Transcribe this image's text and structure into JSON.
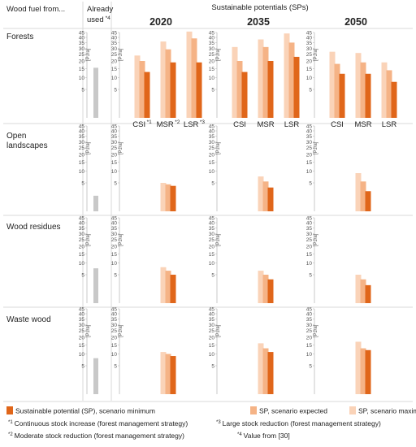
{
  "header": {
    "col_label": "Wood fuel from...",
    "already_used_line1": "Already",
    "already_used_line2": "used",
    "already_used_sup": "*4",
    "sp_title": "Sustainable potentials (SPs)",
    "years": [
      "2020",
      "2035",
      "2050"
    ]
  },
  "rows": [
    {
      "label_lines": [
        "Forests"
      ]
    },
    {
      "label_lines": [
        "Open",
        "landscapes"
      ]
    },
    {
      "label_lines": [
        "Wood residues"
      ]
    },
    {
      "label_lines": [
        "Waste wood"
      ]
    }
  ],
  "y_axis": {
    "unit": "[PJ/a]",
    "ticks": [
      5,
      10,
      15,
      20,
      25,
      30,
      35,
      40,
      45
    ],
    "scale": "sqrt"
  },
  "x_labels": {
    "2020": [
      {
        "text": "CSI",
        "sup": "*1"
      },
      {
        "text": "MSR",
        "sup": "*2"
      },
      {
        "text": "LSR",
        "sup": "*3"
      }
    ],
    "2035": [
      {
        "text": "CSI"
      },
      {
        "text": "MSR"
      },
      {
        "text": "LSR"
      }
    ],
    "2050": [
      {
        "text": "CSI"
      },
      {
        "text": "MSR"
      },
      {
        "text": "LSR"
      }
    ]
  },
  "colors": {
    "minimum": "#e0661a",
    "expected": "#f5b386",
    "maximum": "#fad3b8",
    "already_used": "#c8c8c8",
    "grid": "#d9d9d9"
  },
  "legend": {
    "minimum": "Sustainable potential (SP), scenario minimum",
    "expected": "SP, scenario expected",
    "maximum": "SP, scenario maximum",
    "notes": [
      {
        "key": "*1",
        "text": "Continuous stock increase (forest management strategy)"
      },
      {
        "key": "*2",
        "text": "Moderate stock reduction (forest management strategy)"
      },
      {
        "key": "*3",
        "text": "Large stock reduction (forest management strategy)"
      },
      {
        "key": "*4",
        "text": "Value from [30]"
      }
    ]
  },
  "chart_data": {
    "type": "bar",
    "scale": "sqrt",
    "ylim": [
      0,
      45
    ],
    "ylabel": "[PJ/a]",
    "series_order": [
      "maximum",
      "expected",
      "minimum"
    ],
    "panels": [
      {
        "category": "Forests",
        "already_used": 15.5,
        "years": {
          "2020": {
            "CSI": [
              24,
              20,
              13
            ],
            "MSR": [
              36,
              29,
              19
            ],
            "LSR": [
              46,
              39,
              19
            ]
          },
          "2035": {
            "CSI": [
              31,
              20,
              13
            ],
            "MSR": [
              38,
              31,
              20
            ],
            "LSR": [
              44,
              35,
              23
            ]
          },
          "2050": {
            "CSI": [
              27,
              18,
              12
            ],
            "MSR": [
              26,
              19,
              12
            ],
            "LSR": [
              19,
              14,
              8
            ]
          }
        }
      },
      {
        "category": "Open landscapes",
        "already_used": 1.5,
        "years": {
          "2020": {
            "MSR": [
              5,
              4.5,
              4
            ]
          },
          "2035": {
            "MSR": [
              7.5,
              5.5,
              3.5
            ]
          },
          "2050": {
            "MSR": [
              9,
              5.5,
              2.5
            ]
          }
        }
      },
      {
        "category": "Wood residues",
        "already_used": 7.5,
        "years": {
          "2020": {
            "MSR": [
              8,
              6.5,
              5
            ]
          },
          "2035": {
            "MSR": [
              6.5,
              5,
              3.5
            ]
          },
          "2050": {
            "MSR": [
              5,
              3.5,
              2
            ]
          }
        }
      },
      {
        "category": "Waste wood",
        "already_used": 8,
        "years": {
          "2020": {
            "MSR": [
              11,
              10,
              9
            ]
          },
          "2035": {
            "MSR": [
              16,
              13,
              11
            ]
          },
          "2050": {
            "MSR": [
              17,
              13,
              12
            ]
          }
        }
      }
    ]
  }
}
